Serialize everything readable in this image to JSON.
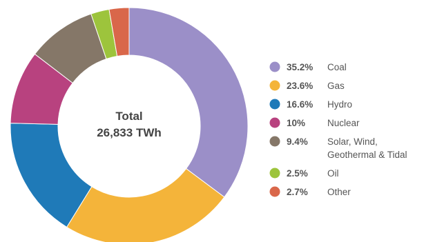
{
  "chart_data": {
    "type": "pie",
    "center_label": {
      "line1": "Total",
      "line2": "26,833 TWh"
    },
    "slices": [
      {
        "percent_label": "35.2%",
        "value": 35.2,
        "label_lines": [
          "Coal"
        ],
        "color": "#9b8fc8"
      },
      {
        "percent_label": "23.6%",
        "value": 23.6,
        "label_lines": [
          "Gas"
        ],
        "color": "#f4b43a"
      },
      {
        "percent_label": "16.6%",
        "value": 16.6,
        "label_lines": [
          "Hydro"
        ],
        "color": "#1f7ab8"
      },
      {
        "percent_label": "10%",
        "value": 10.0,
        "label_lines": [
          "Nuclear"
        ],
        "color": "#b8427f"
      },
      {
        "percent_label": "9.4%",
        "value": 9.4,
        "label_lines": [
          "Solar, Wind,",
          "Geothermal & Tidal"
        ],
        "color": "#857768"
      },
      {
        "percent_label": "2.5%",
        "value": 2.5,
        "label_lines": [
          "Oil"
        ],
        "color": "#9dc43c"
      },
      {
        "percent_label": "2.7%",
        "value": 2.7,
        "label_lines": [
          "Other"
        ],
        "color": "#d9674a"
      }
    ],
    "legend_position": "right"
  }
}
